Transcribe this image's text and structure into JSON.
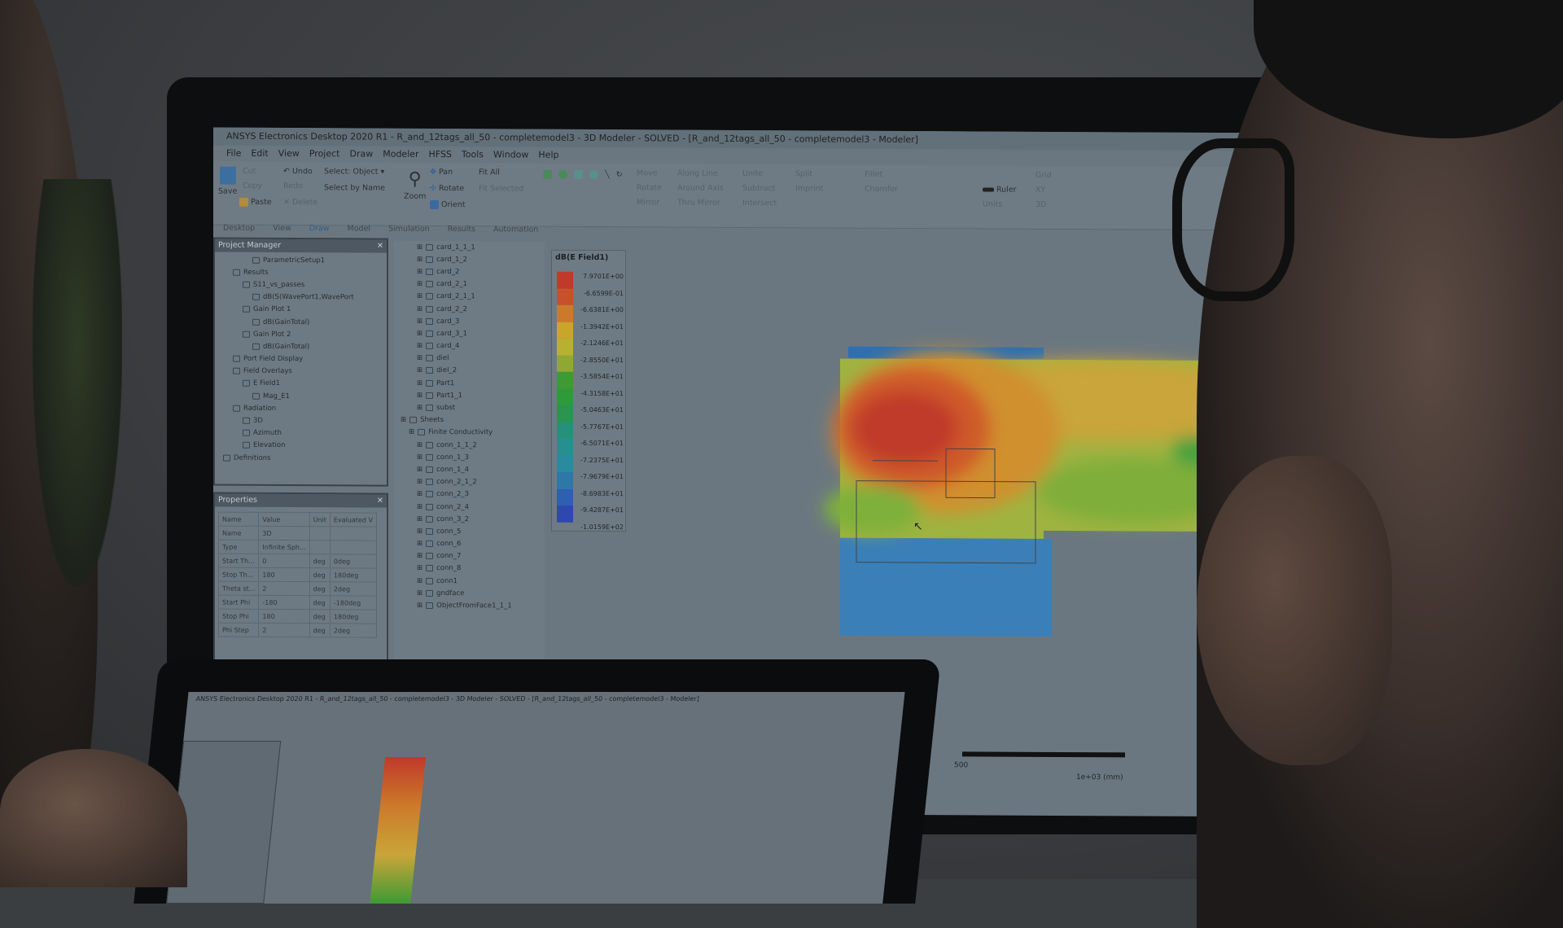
{
  "window": {
    "title": "ANSYS Electronics Desktop 2020 R1 - R_and_12tags_all_50 - completemodel3 - 3D Modeler - SOLVED - [R_and_12tags_all_50 - completemodel3 - Modeler]"
  },
  "menu": [
    "File",
    "Edit",
    "View",
    "Project",
    "Draw",
    "Modeler",
    "HFSS",
    "Tools",
    "Window",
    "Help"
  ],
  "ribbon": {
    "save": "Save",
    "cut": "Cut",
    "copy": "Copy",
    "paste": "Paste",
    "undo": "Undo",
    "redo": "Redo",
    "delete": "Delete",
    "select": "Select: Object",
    "select_by_name": "Select by Name",
    "zoom": "Zoom",
    "pan": "Pan",
    "rotate": "Rotate",
    "orient": "Orient",
    "fit_all": "Fit All",
    "fit_selected": "Fit Selected",
    "move": "Move",
    "rotate2": "Rotate",
    "mirror": "Mirror",
    "along_line": "Along Line",
    "around_axis": "Around Axis",
    "thru_mirror": "Thru Mirror",
    "unite": "Unite",
    "subtract": "Subtract",
    "intersect": "Intersect",
    "split": "Split",
    "imprint": "Imprint",
    "fillet": "Fillet",
    "chamfer": "Chamfer",
    "ruler": "Ruler",
    "units": "Units",
    "grid": "Grid",
    "xy": "XY",
    "3d": "3D"
  },
  "tabs": [
    "Desktop",
    "View",
    "Draw",
    "Model",
    "Simulation",
    "Results",
    "Automation"
  ],
  "project_manager": {
    "title": "Project Manager",
    "items": [
      "ParametricSetup1",
      "Results",
      "S11_vs_passes",
      "dB(S(WavePort1,WavePort",
      "Gain Plot 1",
      "dB(GainTotal)",
      "Gain Plot 2",
      "dB(GainTotal)",
      "Port Field Display",
      "Field Overlays",
      "E Field1",
      "Mag_E1",
      "Radiation",
      "3D",
      "Azimuth",
      "Elevation",
      "Definitions"
    ]
  },
  "properties": {
    "title": "Properties",
    "columns": [
      "Name",
      "Value",
      "Unit",
      "Evaluated V"
    ],
    "rows": [
      [
        "Name",
        "3D",
        "",
        ""
      ],
      [
        "Type",
        "Infinite Sph...",
        "",
        ""
      ],
      [
        "Start Th...",
        "0",
        "deg",
        "0deg"
      ],
      [
        "Stop Th...",
        "180",
        "deg",
        "180deg"
      ],
      [
        "Theta st...",
        "2",
        "deg",
        "2deg"
      ],
      [
        "Start Phi",
        "-180",
        "deg",
        "-180deg"
      ],
      [
        "Stop Phi",
        "180",
        "deg",
        "180deg"
      ],
      [
        "Phi Step",
        "2",
        "deg",
        "2deg"
      ]
    ]
  },
  "model_tree": {
    "solids": [
      "card_1_1_1",
      "card_1_2",
      "card_2",
      "card_2_1",
      "card_2_1_1",
      "card_2_2",
      "card_3",
      "card_3_1",
      "card_4",
      "diel",
      "diel_2",
      "Part1",
      "Part1_1",
      "subst"
    ],
    "sheets_label": "Sheets",
    "finite_label": "Finite Conductivity",
    "sheets": [
      "conn_1_1_2",
      "conn_1_3",
      "conn_1_4",
      "conn_2_1_2",
      "conn_2_3",
      "conn_2_4",
      "conn_3_2",
      "conn_5",
      "conn_6",
      "conn_7",
      "conn_8",
      "conn1",
      "gndface",
      "ObjectFromFace1_1_1"
    ]
  },
  "legend": {
    "title": "dB(E Field1)",
    "values": [
      "7.9701E+00",
      "-6.6599E-01",
      "-6.6381E+00",
      "-1.3942E+01",
      "-2.1246E+01",
      "-2.8550E+01",
      "-3.5854E+01",
      "-4.3158E+01",
      "-5.0463E+01",
      "-5.7767E+01",
      "-6.5071E+01",
      "-7.2375E+01",
      "-7.9679E+01",
      "-8.6983E+01",
      "-9.4287E+01",
      "-1.0159E+02"
    ],
    "colors": [
      "#c0392b",
      "#c8502a",
      "#cc7a2a",
      "#c9a52c",
      "#b8b030",
      "#8fa832",
      "#3e9a34",
      "#2f9a3a",
      "#2a9450",
      "#27907a",
      "#269090",
      "#2a8aa0",
      "#2e78a8",
      "#2f5fb0",
      "#2f48b0"
    ]
  },
  "scale_bar": {
    "tick": "500",
    "unit": "1e+03 (mm)"
  }
}
